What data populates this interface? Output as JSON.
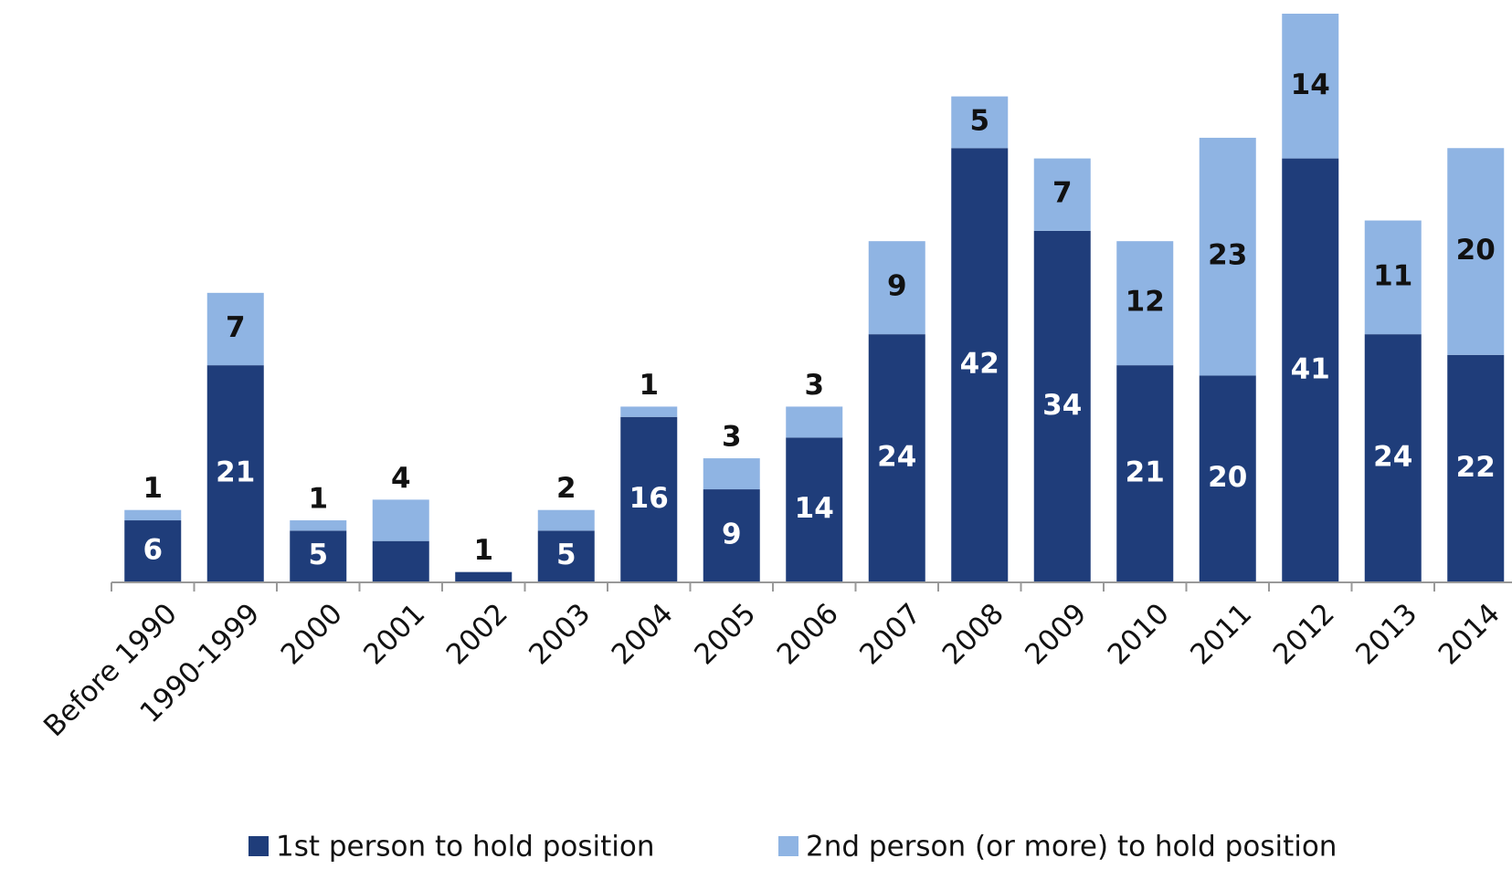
{
  "chart_data": {
    "type": "stacked_bar",
    "categories": [
      "Before 1990",
      "1990-1999",
      "2000",
      "2001",
      "2002",
      "2003",
      "2004",
      "2005",
      "2006",
      "2007",
      "2008",
      "2009",
      "2010",
      "2011",
      "2012",
      "2013",
      "2014"
    ],
    "series": [
      {
        "name": "1st person to hold position",
        "color": "#1f3d7a",
        "values": [
          6,
          21,
          5,
          4,
          1,
          5,
          16,
          9,
          14,
          24,
          42,
          34,
          21,
          20,
          41,
          24,
          22
        ]
      },
      {
        "name": "2nd person (or more) to hold position",
        "color": "#8fb4e3",
        "values": [
          1,
          7,
          1,
          4,
          null,
          2,
          1,
          3,
          3,
          9,
          5,
          7,
          12,
          23,
          14,
          11,
          20
        ]
      }
    ],
    "legend": "bottom"
  }
}
